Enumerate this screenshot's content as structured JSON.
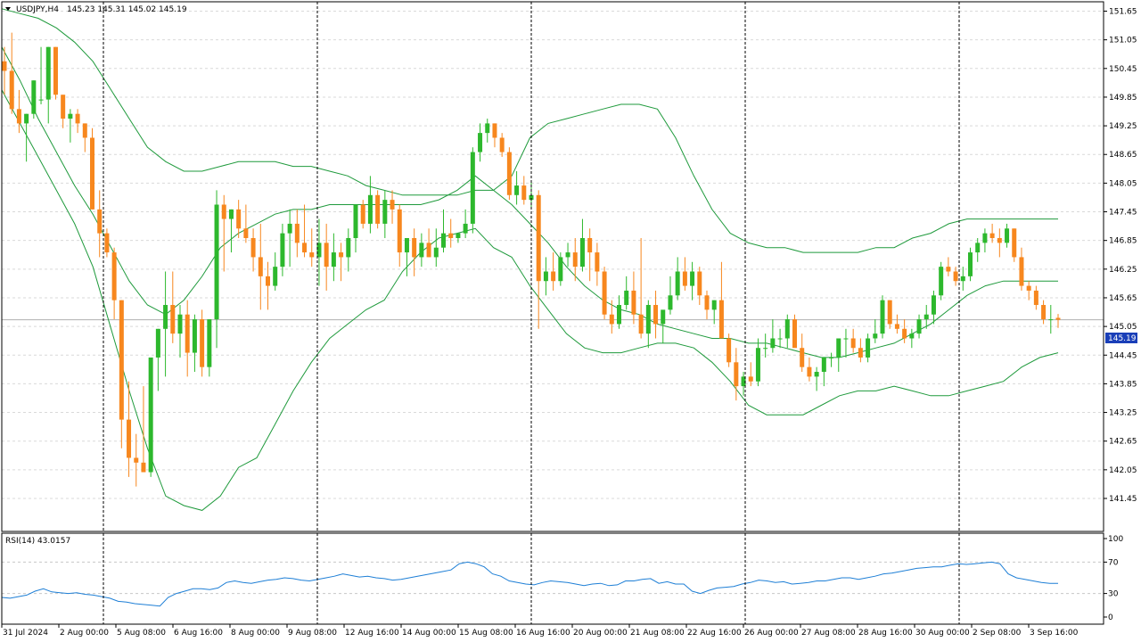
{
  "header": {
    "symbol_label": "USDJPY,H4",
    "ohlc_label": "145.23 145.31 145.02 145.19"
  },
  "rsi_panel": {
    "label": "RSI(14) 43.0157"
  },
  "price_axis": {
    "ticks": [
      "151.65",
      "151.05",
      "150.45",
      "149.85",
      "149.25",
      "148.65",
      "148.05",
      "147.45",
      "146.85",
      "146.25",
      "145.65",
      "145.05",
      "144.45",
      "143.85",
      "143.25",
      "142.65",
      "142.05",
      "141.45"
    ],
    "current_price_label": "145.19"
  },
  "rsi_axis": {
    "ticks": [
      "100",
      "70",
      "30",
      "0"
    ]
  },
  "time_axis": {
    "ticks": [
      "31 Jul 2024",
      "2 Aug 00:00",
      "5 Aug 08:00",
      "6 Aug 16:00",
      "8 Aug 00:00",
      "9 Aug 08:00",
      "12 Aug 16:00",
      "14 Aug 00:00",
      "15 Aug 08:00",
      "16 Aug 16:00",
      "20 Aug 00:00",
      "21 Aug 08:00",
      "22 Aug 16:00",
      "26 Aug 00:00",
      "27 Aug 08:00",
      "28 Aug 16:00",
      "30 Aug 00:00",
      "2 Sep 08:00",
      "3 Sep 16:00"
    ]
  },
  "colors": {
    "bull": "#2db82d",
    "bear": "#f7871e",
    "band": "#1f9a3c",
    "rsi": "#1e7fd6",
    "grid": "#d9d9d9",
    "separator": "#000000",
    "price_tag_bg": "#1a3fb8"
  },
  "chart_data": [
    {
      "type": "candlestick",
      "title": "USDJPY,H4",
      "ylim": [
        141.45,
        151.65
      ],
      "grid": true,
      "overlays": [
        "bollinger upper",
        "bollinger middle",
        "bollinger lower"
      ],
      "candles": [
        [
          150.6,
          150.9,
          149.9,
          150.4
        ],
        [
          150.4,
          151.2,
          149.5,
          149.6
        ],
        [
          149.6,
          150.0,
          149.1,
          149.3
        ],
        [
          149.3,
          149.5,
          148.5,
          149.5
        ],
        [
          149.5,
          150.2,
          149.4,
          150.2
        ],
        [
          149.8,
          150.9,
          149.7,
          149.8
        ],
        [
          149.8,
          150.9,
          149.3,
          150.9
        ],
        [
          150.9,
          150.9,
          149.8,
          149.9
        ],
        [
          149.9,
          149.9,
          149.2,
          149.4
        ],
        [
          149.4,
          149.6,
          148.9,
          149.5
        ],
        [
          149.5,
          149.6,
          149.1,
          149.3
        ],
        [
          149.3,
          149.3,
          148.7,
          149.0
        ],
        [
          149.0,
          149.2,
          147.5,
          147.5
        ],
        [
          147.5,
          147.9,
          146.5,
          147.0
        ],
        [
          147.0,
          147.1,
          146.5,
          146.6
        ],
        [
          146.6,
          146.7,
          145.2,
          145.6
        ],
        [
          145.6,
          145.6,
          142.5,
          143.1
        ],
        [
          143.1,
          143.9,
          141.9,
          142.3
        ],
        [
          142.3,
          142.8,
          141.7,
          142.2
        ],
        [
          142.2,
          143.8,
          142.0,
          142.0
        ],
        [
          142.0,
          144.4,
          141.9,
          144.4
        ],
        [
          144.4,
          145.0,
          143.7,
          145.0
        ],
        [
          145.0,
          146.2,
          144.0,
          145.5
        ],
        [
          145.5,
          146.2,
          144.7,
          144.9
        ],
        [
          144.9,
          145.5,
          144.4,
          145.3
        ],
        [
          145.3,
          145.6,
          144.0,
          144.5
        ],
        [
          144.5,
          145.3,
          144.1,
          145.2
        ],
        [
          145.2,
          145.4,
          144.0,
          144.2
        ],
        [
          144.2,
          145.2,
          144.0,
          145.2
        ],
        [
          145.2,
          147.9,
          144.6,
          147.6
        ],
        [
          147.6,
          147.8,
          146.2,
          147.3
        ],
        [
          147.3,
          147.5,
          146.6,
          147.5
        ],
        [
          147.5,
          147.7,
          146.9,
          147.1
        ],
        [
          147.1,
          147.6,
          146.8,
          146.9
        ],
        [
          146.9,
          147.1,
          146.2,
          146.5
        ],
        [
          146.5,
          147.2,
          145.4,
          146.1
        ],
        [
          146.1,
          146.4,
          145.4,
          145.9
        ],
        [
          145.9,
          146.6,
          145.8,
          146.3
        ],
        [
          146.3,
          147.2,
          146.1,
          147.0
        ],
        [
          147.0,
          147.5,
          146.3,
          147.2
        ],
        [
          147.2,
          147.5,
          146.5,
          146.8
        ],
        [
          146.8,
          147.6,
          146.5,
          146.6
        ],
        [
          146.6,
          147.1,
          146.3,
          146.5
        ],
        [
          146.5,
          147.3,
          145.9,
          146.8
        ],
        [
          146.8,
          147.2,
          145.8,
          146.3
        ],
        [
          146.3,
          147.0,
          146.0,
          146.6
        ],
        [
          146.6,
          146.8,
          146.0,
          146.5
        ],
        [
          146.5,
          147.1,
          146.2,
          146.9
        ],
        [
          146.9,
          147.5,
          146.6,
          147.6
        ],
        [
          147.6,
          147.7,
          147.1,
          147.2
        ],
        [
          147.2,
          148.2,
          147.0,
          147.8
        ],
        [
          147.8,
          147.9,
          147.1,
          147.2
        ],
        [
          147.2,
          147.9,
          146.9,
          147.7
        ],
        [
          147.7,
          147.9,
          147.2,
          147.5
        ],
        [
          147.5,
          147.6,
          146.3,
          146.6
        ],
        [
          146.6,
          146.9,
          146.1,
          146.9
        ],
        [
          146.9,
          147.1,
          146.1,
          146.5
        ],
        [
          146.5,
          147.0,
          146.3,
          146.8
        ],
        [
          146.8,
          147.1,
          146.5,
          146.5
        ],
        [
          146.5,
          147.1,
          146.3,
          146.7
        ],
        [
          146.7,
          147.5,
          146.6,
          147.0
        ],
        [
          147.0,
          147.3,
          146.7,
          146.9
        ],
        [
          146.9,
          147.0,
          146.8,
          147.0
        ],
        [
          147.0,
          147.5,
          146.9,
          147.2
        ],
        [
          147.2,
          148.8,
          147.0,
          148.7
        ],
        [
          148.7,
          149.3,
          148.5,
          149.1
        ],
        [
          149.1,
          149.4,
          148.9,
          149.3
        ],
        [
          149.3,
          149.3,
          148.8,
          149.0
        ],
        [
          149.0,
          149.1,
          148.6,
          148.7
        ],
        [
          148.7,
          148.8,
          147.7,
          147.8
        ],
        [
          147.8,
          148.3,
          147.6,
          148.0
        ],
        [
          148.0,
          148.2,
          147.6,
          147.7
        ],
        [
          147.7,
          148.1,
          147.5,
          147.8
        ],
        [
          147.8,
          147.9,
          145.0,
          146.0
        ],
        [
          146.0,
          146.5,
          145.7,
          146.2
        ],
        [
          146.2,
          146.6,
          145.8,
          146.0
        ],
        [
          146.0,
          146.6,
          145.9,
          146.5
        ],
        [
          146.5,
          146.8,
          146.3,
          146.6
        ],
        [
          146.6,
          146.9,
          146.0,
          146.3
        ],
        [
          146.3,
          147.3,
          146.2,
          146.9
        ],
        [
          146.9,
          147.1,
          146.0,
          146.6
        ],
        [
          146.6,
          146.8,
          145.9,
          146.2
        ],
        [
          146.2,
          146.3,
          145.2,
          145.3
        ],
        [
          145.3,
          145.6,
          144.9,
          145.1
        ],
        [
          145.1,
          145.7,
          145.0,
          145.5
        ],
        [
          145.5,
          146.1,
          145.4,
          145.8
        ],
        [
          145.8,
          146.2,
          145.1,
          145.3
        ],
        [
          145.3,
          146.9,
          144.8,
          144.9
        ],
        [
          144.9,
          145.6,
          144.6,
          145.5
        ],
        [
          145.5,
          145.8,
          144.8,
          145.1
        ],
        [
          145.1,
          145.3,
          144.7,
          145.4
        ],
        [
          145.4,
          146.1,
          145.3,
          145.7
        ],
        [
          145.7,
          146.5,
          145.6,
          146.2
        ],
        [
          146.2,
          146.5,
          145.8,
          145.9
        ],
        [
          145.9,
          146.4,
          145.6,
          146.2
        ],
        [
          146.2,
          146.3,
          145.5,
          145.7
        ],
        [
          145.7,
          145.8,
          145.2,
          145.4
        ],
        [
          145.4,
          145.6,
          145.1,
          145.6
        ],
        [
          145.6,
          146.4,
          144.8,
          144.8
        ],
        [
          144.8,
          144.9,
          144.2,
          144.3
        ],
        [
          144.3,
          144.6,
          143.5,
          143.8
        ],
        [
          143.8,
          144.1,
          143.6,
          144.0
        ],
        [
          144.0,
          144.3,
          143.8,
          143.9
        ],
        [
          143.9,
          144.8,
          143.8,
          144.6
        ],
        [
          144.6,
          144.9,
          144.4,
          144.6
        ],
        [
          144.6,
          145.2,
          144.5,
          144.8
        ],
        [
          144.8,
          145.0,
          144.6,
          144.8
        ],
        [
          144.8,
          145.3,
          144.6,
          145.2
        ],
        [
          145.2,
          145.3,
          144.7,
          144.6
        ],
        [
          144.6,
          144.9,
          144.1,
          144.2
        ],
        [
          144.2,
          144.4,
          143.9,
          144.0
        ],
        [
          144.0,
          144.2,
          143.7,
          144.1
        ],
        [
          144.1,
          144.4,
          143.8,
          144.4
        ],
        [
          144.4,
          144.5,
          144.2,
          144.4
        ],
        [
          144.4,
          144.8,
          144.1,
          144.8
        ],
        [
          144.8,
          145.0,
          144.4,
          144.8
        ],
        [
          144.8,
          145.0,
          144.5,
          144.6
        ],
        [
          144.6,
          144.8,
          144.3,
          144.4
        ],
        [
          144.4,
          144.9,
          144.3,
          144.8
        ],
        [
          144.8,
          145.2,
          144.7,
          144.9
        ],
        [
          144.9,
          145.7,
          144.8,
          145.6
        ],
        [
          145.6,
          145.6,
          145.0,
          145.1
        ],
        [
          145.1,
          145.3,
          144.9,
          145.0
        ],
        [
          145.0,
          145.2,
          144.7,
          144.8
        ],
        [
          144.8,
          145.0,
          144.6,
          144.9
        ],
        [
          144.9,
          145.3,
          144.8,
          145.2
        ],
        [
          145.2,
          145.5,
          145.0,
          145.3
        ],
        [
          145.3,
          145.8,
          145.1,
          145.7
        ],
        [
          145.7,
          146.4,
          145.6,
          146.3
        ],
        [
          146.3,
          146.5,
          146.1,
          146.2
        ],
        [
          146.2,
          146.3,
          145.9,
          146.0
        ],
        [
          146.0,
          146.3,
          145.8,
          146.1
        ],
        [
          146.1,
          146.7,
          146.0,
          146.6
        ],
        [
          146.6,
          146.9,
          146.4,
          146.8
        ],
        [
          146.8,
          147.1,
          146.6,
          147.0
        ],
        [
          147.0,
          147.2,
          146.8,
          146.9
        ],
        [
          146.9,
          147.1,
          146.5,
          146.8
        ],
        [
          146.8,
          147.2,
          146.7,
          147.1
        ],
        [
          147.1,
          147.1,
          146.4,
          146.5
        ],
        [
          146.5,
          146.7,
          145.8,
          145.9
        ],
        [
          145.9,
          146.0,
          145.6,
          145.8
        ],
        [
          145.8,
          145.9,
          145.4,
          145.5
        ],
        [
          145.5,
          145.6,
          145.1,
          145.2
        ],
        [
          145.2,
          145.5,
          144.9,
          145.2
        ],
        [
          145.23,
          145.31,
          145.02,
          145.19
        ]
      ],
      "bollinger_upper": [
        151.7,
        151.6,
        151.5,
        151.3,
        151.0,
        150.6,
        150.0,
        149.4,
        148.8,
        148.5,
        148.3,
        148.3,
        148.4,
        148.5,
        148.5,
        148.5,
        148.4,
        148.4,
        148.3,
        148.2,
        148.0,
        147.9,
        147.8,
        147.8,
        147.8,
        147.8,
        147.9,
        147.9,
        148.2,
        149.0,
        149.3,
        149.4,
        149.5,
        149.6,
        149.7,
        149.7,
        149.6,
        149.0,
        148.2,
        147.5,
        147.0,
        146.8,
        146.7,
        146.7,
        146.6,
        146.6,
        146.6,
        146.6,
        146.7,
        146.7,
        146.9,
        147.0,
        147.2,
        147.3,
        147.3,
        147.3,
        147.3,
        147.3,
        147.3
      ],
      "bollinger_middle": [
        150.9,
        150.2,
        149.4,
        148.7,
        148.0,
        147.4,
        146.7,
        146.0,
        145.5,
        145.3,
        145.6,
        146.1,
        146.7,
        147.0,
        147.2,
        147.4,
        147.5,
        147.5,
        147.6,
        147.6,
        147.6,
        147.6,
        147.6,
        147.6,
        147.7,
        147.9,
        148.2,
        147.9,
        147.6,
        147.2,
        146.8,
        146.3,
        145.9,
        145.6,
        145.4,
        145.3,
        145.1,
        145.0,
        144.9,
        144.8,
        144.8,
        144.7,
        144.7,
        144.6,
        144.5,
        144.4,
        144.4,
        144.5,
        144.6,
        144.7,
        144.9,
        145.1,
        145.4,
        145.7,
        145.9,
        146.0,
        146.0,
        146.0,
        146.0
      ],
      "bollinger_lower": [
        150.0,
        149.3,
        148.6,
        147.9,
        147.2,
        146.3,
        145.0,
        143.7,
        142.5,
        141.5,
        141.3,
        141.2,
        141.5,
        142.1,
        142.3,
        143.0,
        143.7,
        144.3,
        144.8,
        145.1,
        145.4,
        145.6,
        146.2,
        146.6,
        146.9,
        147.0,
        147.1,
        146.7,
        146.5,
        145.9,
        145.4,
        144.9,
        144.6,
        144.5,
        144.5,
        144.6,
        144.7,
        144.7,
        144.6,
        144.3,
        143.9,
        143.4,
        143.2,
        143.2,
        143.2,
        143.4,
        143.6,
        143.7,
        143.7,
        143.8,
        143.7,
        143.6,
        143.6,
        143.7,
        143.8,
        143.9,
        144.2,
        144.4,
        144.5
      ]
    },
    {
      "type": "line",
      "title": "RSI(14) 43.0157",
      "ylim": [
        0,
        100
      ],
      "levels": [
        70,
        30
      ],
      "values": [
        25,
        24,
        26,
        28,
        33,
        36,
        32,
        31,
        30,
        31,
        29,
        28,
        26,
        24,
        20,
        19,
        17,
        16,
        15,
        14,
        25,
        30,
        33,
        36,
        36,
        35,
        37,
        44,
        46,
        44,
        43,
        45,
        47,
        48,
        50,
        49,
        47,
        46,
        48,
        50,
        52,
        55,
        53,
        51,
        52,
        50,
        49,
        47,
        48,
        50,
        52,
        54,
        56,
        58,
        60,
        68,
        70,
        68,
        64,
        55,
        52,
        46,
        44,
        42,
        41,
        44,
        46,
        45,
        44,
        42,
        40,
        42,
        43,
        40,
        41,
        46,
        46,
        48,
        49,
        43,
        45,
        42,
        42,
        33,
        30,
        34,
        37,
        38,
        39,
        42,
        44,
        47,
        46,
        44,
        45,
        42,
        43,
        44,
        46,
        46,
        48,
        50,
        50,
        48,
        50,
        52,
        55,
        56,
        58,
        60,
        62,
        63,
        64,
        64,
        66,
        68,
        67,
        68,
        69,
        70,
        68,
        55,
        50,
        48,
        46,
        44,
        43,
        43
      ]
    }
  ]
}
